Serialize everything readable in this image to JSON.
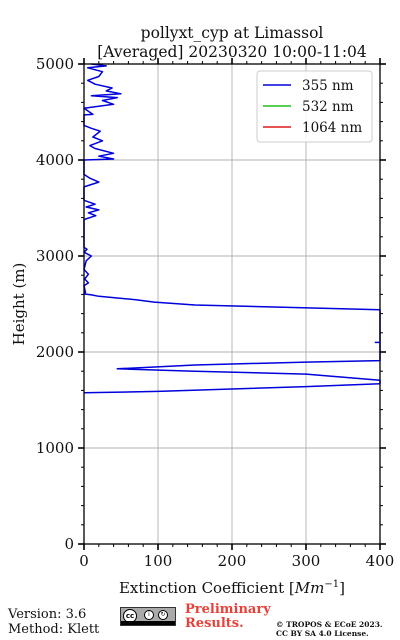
{
  "header": {
    "title_line1": "pollyxt_cyp at Limassol",
    "title_line2": "[Averaged] 20230320 10:00-11:04"
  },
  "footer": {
    "version": "Version: 3.6",
    "method": "Method: Klett",
    "preliminary_line1": "Preliminary",
    "preliminary_line2": "Results.",
    "copyright_line1": "© TROPOS & ECoE 2023.",
    "copyright_line2": "CC BY SA 4.0 License.",
    "license_icon": "cc-by-sa-icon"
  },
  "colors": {
    "355 nm": "#0000dd",
    "532 nm": "#1fbf1f",
    "1064 nm": "#dd1c1c",
    "preliminary": "#e8413a"
  },
  "chart_data": {
    "type": "line",
    "title": "pollyxt_cyp at Limassol\n[Averaged] 20230320 10:00-11:04",
    "xlabel": "Extinction Coefficient [Mm^-1]",
    "ylabel": "Height (m)",
    "xlim": [
      0,
      400
    ],
    "ylim": [
      0,
      5000
    ],
    "xticks": [
      0,
      100,
      200,
      300,
      400
    ],
    "yticks": [
      0,
      1000,
      2000,
      3000,
      4000,
      5000
    ],
    "grid": true,
    "legend_position": "top-right",
    "series": [
      {
        "name": "355 nm",
        "points": [
          [
            0,
            1575
          ],
          [
            100,
            1590
          ],
          [
            300,
            1640
          ],
          [
            400,
            1670
          ],
          [
            400,
            1705
          ],
          [
            300,
            1770
          ],
          [
            150,
            1800
          ],
          [
            45,
            1825
          ],
          [
            150,
            1865
          ],
          [
            300,
            1895
          ],
          [
            400,
            1910
          ],
          [
            400,
            2440
          ],
          [
            250,
            2470
          ],
          [
            150,
            2490
          ],
          [
            95,
            2520
          ],
          [
            70,
            2545
          ],
          [
            20,
            2580
          ],
          [
            10,
            2595
          ],
          [
            0,
            2605
          ],
          [
            2,
            2620
          ],
          [
            0,
            2690
          ],
          [
            6,
            2720
          ],
          [
            1,
            2760
          ],
          [
            6,
            2810
          ],
          [
            0,
            2860
          ],
          [
            3,
            2950
          ],
          [
            10,
            3000
          ],
          [
            0,
            3040
          ],
          [
            4,
            3070
          ],
          [
            0,
            3090
          ],
          [
            0,
            3380
          ],
          [
            16,
            3420
          ],
          [
            6,
            3450
          ],
          [
            20,
            3480
          ],
          [
            3,
            3510
          ],
          [
            15,
            3540
          ],
          [
            0,
            3580
          ],
          [
            0,
            3720
          ],
          [
            20,
            3770
          ],
          [
            8,
            3810
          ],
          [
            0,
            3850
          ],
          [
            0,
            4000
          ],
          [
            40,
            4010
          ],
          [
            20,
            4040
          ],
          [
            40,
            4070
          ],
          [
            15,
            4120
          ],
          [
            8,
            4150
          ],
          [
            25,
            4200
          ],
          [
            12,
            4240
          ],
          [
            22,
            4300
          ],
          [
            10,
            4330
          ],
          [
            0,
            4360
          ],
          [
            0,
            4470
          ],
          [
            12,
            4475
          ],
          [
            0,
            4540
          ],
          [
            40,
            4580
          ],
          [
            25,
            4620
          ],
          [
            45,
            4650
          ],
          [
            10,
            4670
          ],
          [
            50,
            4690
          ],
          [
            30,
            4720
          ],
          [
            38,
            4750
          ],
          [
            15,
            4790
          ],
          [
            5,
            4830
          ],
          [
            20,
            4870
          ],
          [
            25,
            4920
          ],
          [
            5,
            4960
          ],
          [
            30,
            4980
          ],
          [
            10,
            5000
          ]
        ],
        "extra_segment": [
          [
            393,
            2100
          ],
          [
            400,
            2100
          ]
        ]
      },
      {
        "name": "532 nm",
        "points": []
      },
      {
        "name": "1064 nm",
        "points": []
      }
    ]
  }
}
